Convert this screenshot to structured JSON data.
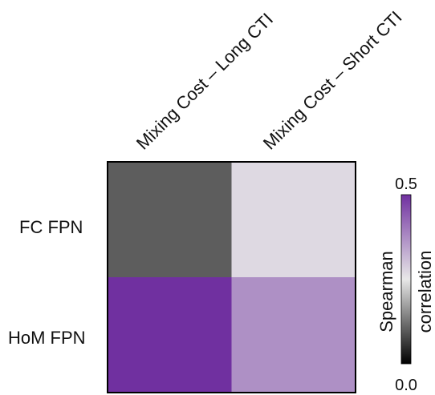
{
  "chart_data": {
    "type": "heatmap",
    "columns": [
      "Mixing Cost – Long CTI",
      "Mixing Cost – Short CTI"
    ],
    "rows": [
      "FC FPN",
      "HoM FPN"
    ],
    "values": [
      [
        0.1,
        0.27
      ],
      [
        0.5,
        0.37
      ]
    ],
    "colorbar": {
      "label_line1": "Spearman",
      "label_line2": "correlation",
      "min_label": "0.0",
      "max_label": "0.5",
      "range": [
        0.0,
        0.5
      ],
      "colors": [
        "#000000",
        "#e8e8e8",
        "#7030a0"
      ]
    }
  }
}
